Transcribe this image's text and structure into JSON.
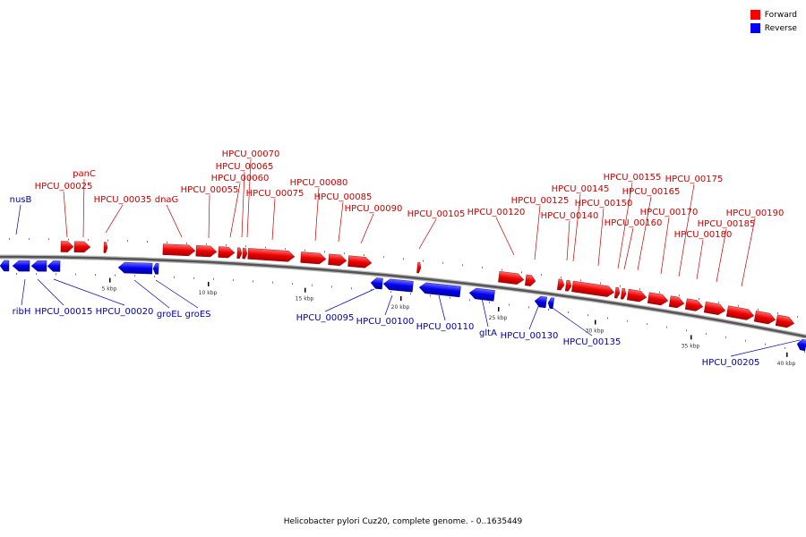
{
  "caption": "Helicobacter pylori Cuz20, complete genome. - 0..1635449",
  "legend": [
    {
      "label": "Forward",
      "color": "#ff0000"
    },
    {
      "label": "Reverse",
      "color": "#0000ff"
    }
  ],
  "colors": {
    "forward_label": "#cc0000",
    "reverse_label": "#0000aa",
    "backbone": "#555555"
  },
  "scale_labels": [
    "5 kbp",
    "10 kbp",
    "15 kbp",
    "20 kbp",
    "25 kbp",
    "30 kbp",
    "35 kbp",
    "40 kbp"
  ],
  "forward_genes": [
    "panC",
    "HPCU_00025",
    "HPCU_00035",
    "dnaG",
    "HPCU_00055",
    "HPCU_00060",
    "HPCU_00065",
    "HPCU_00070",
    "HPCU_00075",
    "HPCU_00080",
    "HPCU_00085",
    "HPCU_00090",
    "HPCU_00105",
    "HPCU_00120",
    "HPCU_00125",
    "HPCU_00140",
    "HPCU_00145",
    "HPCU_00150",
    "HPCU_00155",
    "HPCU_00160",
    "HPCU_00165",
    "HPCU_00170",
    "HPCU_00175",
    "HPCU_00180",
    "HPCU_00185",
    "HPCU_00190"
  ],
  "reverse_genes": [
    "nusB",
    "ribH",
    "HPCU_00015",
    "HPCU_00020",
    "groEL",
    "groES",
    "HPCU_00095",
    "HPCU_00100",
    "HPCU_00110",
    "gltA",
    "HPCU_00130",
    "HPCU_00135",
    "HPCU_00205"
  ]
}
